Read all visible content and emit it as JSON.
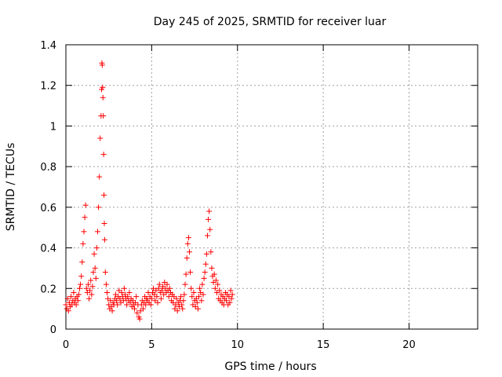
{
  "chart_data": {
    "type": "scatter",
    "title": "Day 245 of 2025, SRMTID for receiver luar",
    "xlabel": "GPS time / hours",
    "ylabel": "SRMTID / TECUs",
    "xlim": [
      0,
      24
    ],
    "ylim": [
      0,
      1.4
    ],
    "x_ticks": [
      0,
      5,
      10,
      15,
      20
    ],
    "x_tick_labels": [
      "0",
      "5",
      "10",
      "15",
      "20"
    ],
    "y_ticks": [
      0,
      0.2,
      0.4,
      0.6,
      0.8,
      1.0,
      1.2,
      1.4
    ],
    "y_tick_labels": [
      "0",
      "0.2",
      "0.4",
      "0.6",
      "0.8",
      "1",
      "1.2",
      "1.4"
    ],
    "grid": true,
    "marker": "+",
    "series": [
      {
        "name": "SRMTID",
        "color": "#ff0000",
        "x": [
          0.0,
          0.05,
          0.1,
          0.15,
          0.2,
          0.25,
          0.3,
          0.35,
          0.4,
          0.45,
          0.5,
          0.55,
          0.6,
          0.65,
          0.7,
          0.75,
          0.8,
          0.85,
          0.9,
          0.95,
          1.0,
          1.05,
          1.1,
          1.15,
          1.2,
          1.25,
          1.3,
          1.35,
          1.4,
          1.45,
          1.5,
          1.55,
          1.6,
          1.65,
          1.7,
          1.75,
          1.8,
          1.85,
          1.9,
          1.95,
          2.0,
          2.05,
          2.08,
          2.1,
          2.12,
          2.14,
          2.16,
          2.18,
          2.2,
          2.22,
          2.24,
          2.26,
          2.3,
          2.35,
          2.4,
          2.45,
          2.5,
          2.55,
          2.6,
          2.65,
          2.7,
          2.75,
          2.8,
          2.85,
          2.9,
          2.95,
          3.0,
          3.05,
          3.1,
          3.15,
          3.2,
          3.25,
          3.3,
          3.35,
          3.4,
          3.45,
          3.5,
          3.55,
          3.6,
          3.65,
          3.7,
          3.75,
          3.8,
          3.85,
          3.9,
          3.95,
          4.0,
          4.05,
          4.1,
          4.15,
          4.2,
          4.25,
          4.3,
          4.35,
          4.4,
          4.45,
          4.5,
          4.55,
          4.6,
          4.65,
          4.7,
          4.75,
          4.8,
          4.85,
          4.9,
          4.95,
          5.0,
          5.05,
          5.1,
          5.15,
          5.2,
          5.25,
          5.3,
          5.35,
          5.4,
          5.45,
          5.5,
          5.55,
          5.6,
          5.65,
          5.7,
          5.75,
          5.8,
          5.85,
          5.9,
          5.95,
          6.0,
          6.05,
          6.1,
          6.15,
          6.2,
          6.25,
          6.3,
          6.35,
          6.4,
          6.45,
          6.5,
          6.55,
          6.6,
          6.65,
          6.7,
          6.75,
          6.8,
          6.85,
          6.9,
          6.95,
          7.0,
          7.05,
          7.1,
          7.15,
          7.2,
          7.25,
          7.3,
          7.35,
          7.4,
          7.45,
          7.5,
          7.55,
          7.6,
          7.65,
          7.7,
          7.75,
          7.8,
          7.85,
          7.9,
          7.95,
          8.0,
          8.05,
          8.1,
          8.15,
          8.2,
          8.25,
          8.3,
          8.35,
          8.4,
          8.45,
          8.5,
          8.55,
          8.6,
          8.65,
          8.7,
          8.75,
          8.8,
          8.85,
          8.9,
          8.95,
          9.0,
          9.05,
          9.1,
          9.15,
          9.2,
          9.25,
          9.3,
          9.35,
          9.4,
          9.45,
          9.5,
          9.55,
          9.6,
          9.65,
          9.7
        ],
        "y": [
          0.12,
          0.1,
          0.15,
          0.09,
          0.13,
          0.11,
          0.16,
          0.12,
          0.14,
          0.18,
          0.13,
          0.15,
          0.12,
          0.16,
          0.14,
          0.17,
          0.2,
          0.22,
          0.26,
          0.33,
          0.42,
          0.48,
          0.55,
          0.61,
          0.2,
          0.18,
          0.22,
          0.15,
          0.19,
          0.24,
          0.17,
          0.21,
          0.28,
          0.37,
          0.3,
          0.25,
          0.4,
          0.48,
          0.6,
          0.75,
          0.94,
          1.05,
          1.18,
          1.31,
          1.3,
          1.19,
          1.14,
          1.05,
          0.86,
          0.66,
          0.52,
          0.44,
          0.28,
          0.22,
          0.18,
          0.15,
          0.12,
          0.1,
          0.14,
          0.11,
          0.09,
          0.13,
          0.12,
          0.15,
          0.17,
          0.14,
          0.12,
          0.16,
          0.19,
          0.15,
          0.13,
          0.18,
          0.16,
          0.14,
          0.2,
          0.17,
          0.15,
          0.12,
          0.16,
          0.14,
          0.18,
          0.13,
          0.15,
          0.11,
          0.14,
          0.12,
          0.1,
          0.13,
          0.16,
          0.08,
          0.12,
          0.06,
          0.05,
          0.09,
          0.12,
          0.14,
          0.1,
          0.13,
          0.16,
          0.12,
          0.15,
          0.14,
          0.18,
          0.13,
          0.16,
          0.12,
          0.15,
          0.18,
          0.2,
          0.17,
          0.14,
          0.19,
          0.16,
          0.13,
          0.2,
          0.22,
          0.18,
          0.15,
          0.19,
          0.21,
          0.17,
          0.23,
          0.2,
          0.18,
          0.22,
          0.19,
          0.16,
          0.2,
          0.18,
          0.14,
          0.17,
          0.13,
          0.16,
          0.1,
          0.12,
          0.15,
          0.09,
          0.13,
          0.11,
          0.14,
          0.16,
          0.12,
          0.1,
          0.14,
          0.17,
          0.22,
          0.27,
          0.35,
          0.42,
          0.45,
          0.38,
          0.28,
          0.2,
          0.16,
          0.12,
          0.18,
          0.14,
          0.11,
          0.15,
          0.13,
          0.1,
          0.16,
          0.2,
          0.18,
          0.14,
          0.22,
          0.17,
          0.25,
          0.28,
          0.32,
          0.37,
          0.46,
          0.54,
          0.58,
          0.49,
          0.38,
          0.3,
          0.26,
          0.23,
          0.27,
          0.2,
          0.24,
          0.18,
          0.22,
          0.15,
          0.19,
          0.14,
          0.17,
          0.13,
          0.16,
          0.12,
          0.15,
          0.18,
          0.14,
          0.17,
          0.12,
          0.16,
          0.13,
          0.19,
          0.15,
          0.17
        ]
      }
    ]
  }
}
